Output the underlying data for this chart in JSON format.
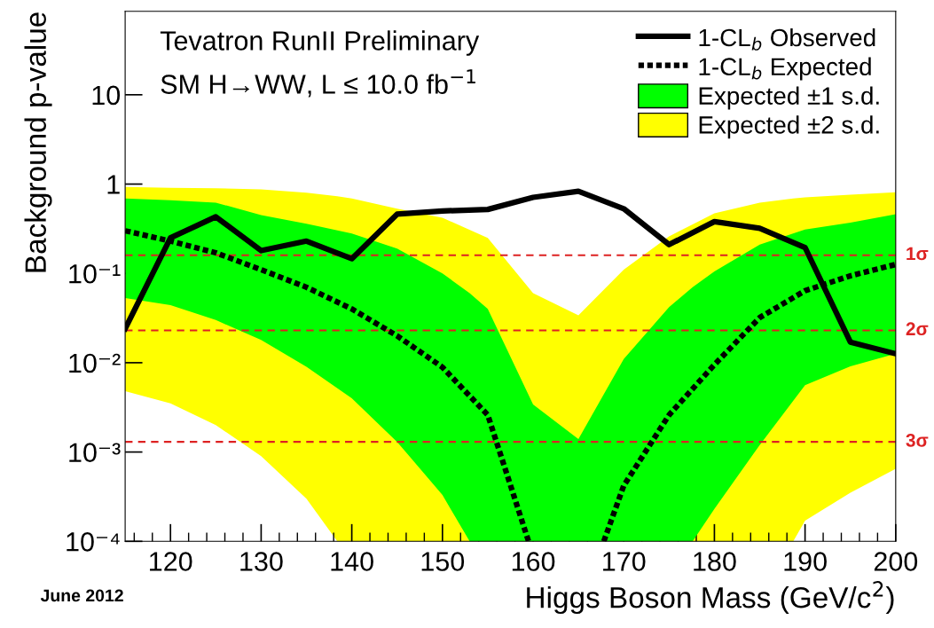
{
  "chart_data": {
    "type": "line",
    "xlabel": "Higgs Boson Mass (GeV/c$^{2}$)",
    "ylabel": "Background p-value",
    "annotations": [
      "Tevatron RunII Preliminary",
      "SM H→WW, L ≤ 10.0 fb$^{−1}$",
      "June 2012"
    ],
    "log": "y",
    "xlim": [
      115,
      200
    ],
    "xticks": [
      120,
      130,
      140,
      150,
      160,
      170,
      180,
      190,
      200
    ],
    "ylim": [
      0.0001,
      86
    ],
    "yticks": [
      {
        "value": 0.0001,
        "label": "10⁻⁴"
      },
      {
        "value": 0.001,
        "label": "10⁻³"
      },
      {
        "value": 0.01,
        "label": "10⁻²"
      },
      {
        "value": 0.1,
        "label": "10⁻¹"
      },
      1,
      10
    ],
    "grid": false,
    "legend": "top right",
    "series": [
      {
        "name": "1-CL$_{b}$ Observed",
        "color": "#000000",
        "line_style": "solid",
        "x": [
          115,
          120,
          125,
          130,
          135,
          140,
          145,
          150,
          155,
          160,
          165,
          170,
          175,
          180,
          185,
          190,
          195,
          200
        ],
        "values": [
          0.024,
          0.25,
          0.43,
          0.18,
          0.23,
          0.146,
          0.46,
          0.5,
          0.52,
          0.71,
          0.83,
          0.53,
          0.21,
          0.38,
          0.32,
          0.195,
          0.017,
          0.0126
        ]
      },
      {
        "name": "1-CL$_{b}$ Expected",
        "color": "#000000",
        "line_style": "dotted",
        "x": [
          115,
          120,
          125,
          130,
          135,
          140,
          145,
          150,
          155,
          159.5,
          163,
          167.8,
          170,
          175,
          180,
          185,
          190,
          195,
          200
        ],
        "values": [
          0.3,
          0.23,
          0.17,
          0.11,
          0.07,
          0.04,
          0.02,
          0.0089,
          0.0026,
          0.0001,
          null,
          0.0001,
          0.00042,
          0.0026,
          0.0095,
          0.032,
          0.064,
          0.094,
          0.126
        ]
      },
      {
        "name": "Expected ±1 s.d.",
        "type": "area",
        "color": "#00ff00",
        "x": [
          115,
          120,
          125,
          130,
          135,
          140,
          145,
          150,
          153,
          155,
          160,
          165,
          170,
          175,
          177.6,
          180,
          185,
          190,
          195,
          200
        ],
        "values": [
          null,
          null,
          null,
          null,
          null,
          null,
          null,
          null,
          null,
          null,
          null,
          null,
          null,
          null,
          null,
          null,
          null,
          null,
          null,
          null
        ],
        "lower": [
          0.053,
          0.044,
          0.03,
          0.018,
          0.009,
          0.004,
          0.0013,
          0.00033,
          0.0001,
          0.0001,
          0.0001,
          0.0001,
          0.0001,
          0.0001,
          0.0001,
          0.00023,
          0.0012,
          0.0056,
          0.0091,
          0.0126
        ],
        "upper": [
          0.69,
          0.66,
          0.62,
          0.45,
          0.36,
          0.28,
          0.19,
          0.1,
          0.06,
          0.04,
          0.0034,
          0.0014,
          0.011,
          0.042,
          0.07,
          0.105,
          0.21,
          0.31,
          0.37,
          0.46
        ]
      },
      {
        "name": "Expected ±2 s.d.",
        "type": "area",
        "color": "#ffff00",
        "x": [
          115,
          120,
          125,
          130,
          135,
          138.4,
          140,
          145,
          150,
          155,
          160,
          165,
          170,
          175,
          180,
          185,
          188.7,
          190,
          195,
          200
        ],
        "values": [
          null,
          null,
          null,
          null,
          null,
          null,
          null,
          null,
          null,
          null,
          null,
          null,
          null,
          null,
          null,
          null,
          null,
          null,
          null,
          null
        ],
        "lower": [
          0.0048,
          0.0035,
          0.002,
          0.0009,
          0.0003,
          0.0001,
          0.0001,
          0.0001,
          0.0001,
          0.0001,
          0.0001,
          0.0001,
          0.0001,
          0.0001,
          0.0001,
          0.0001,
          0.0001,
          0.00017,
          0.00035,
          0.00065
        ],
        "upper": [
          0.93,
          0.91,
          0.9,
          0.87,
          0.8,
          0.73,
          0.69,
          0.53,
          0.42,
          0.25,
          0.06,
          0.034,
          0.11,
          0.26,
          0.47,
          0.62,
          0.69,
          0.71,
          0.76,
          0.81
        ]
      }
    ],
    "ref_lines": [
      {
        "axis": "y",
        "value": 0.16,
        "label": "1σ",
        "color": "#dd2222",
        "line_style": "dashed"
      },
      {
        "axis": "y",
        "value": 0.023,
        "label": "2σ",
        "color": "#dd2222",
        "line_style": "dashed"
      },
      {
        "axis": "y",
        "value": 0.0013,
        "label": "3σ",
        "color": "#dd2222",
        "line_style": "dashed"
      }
    ]
  }
}
